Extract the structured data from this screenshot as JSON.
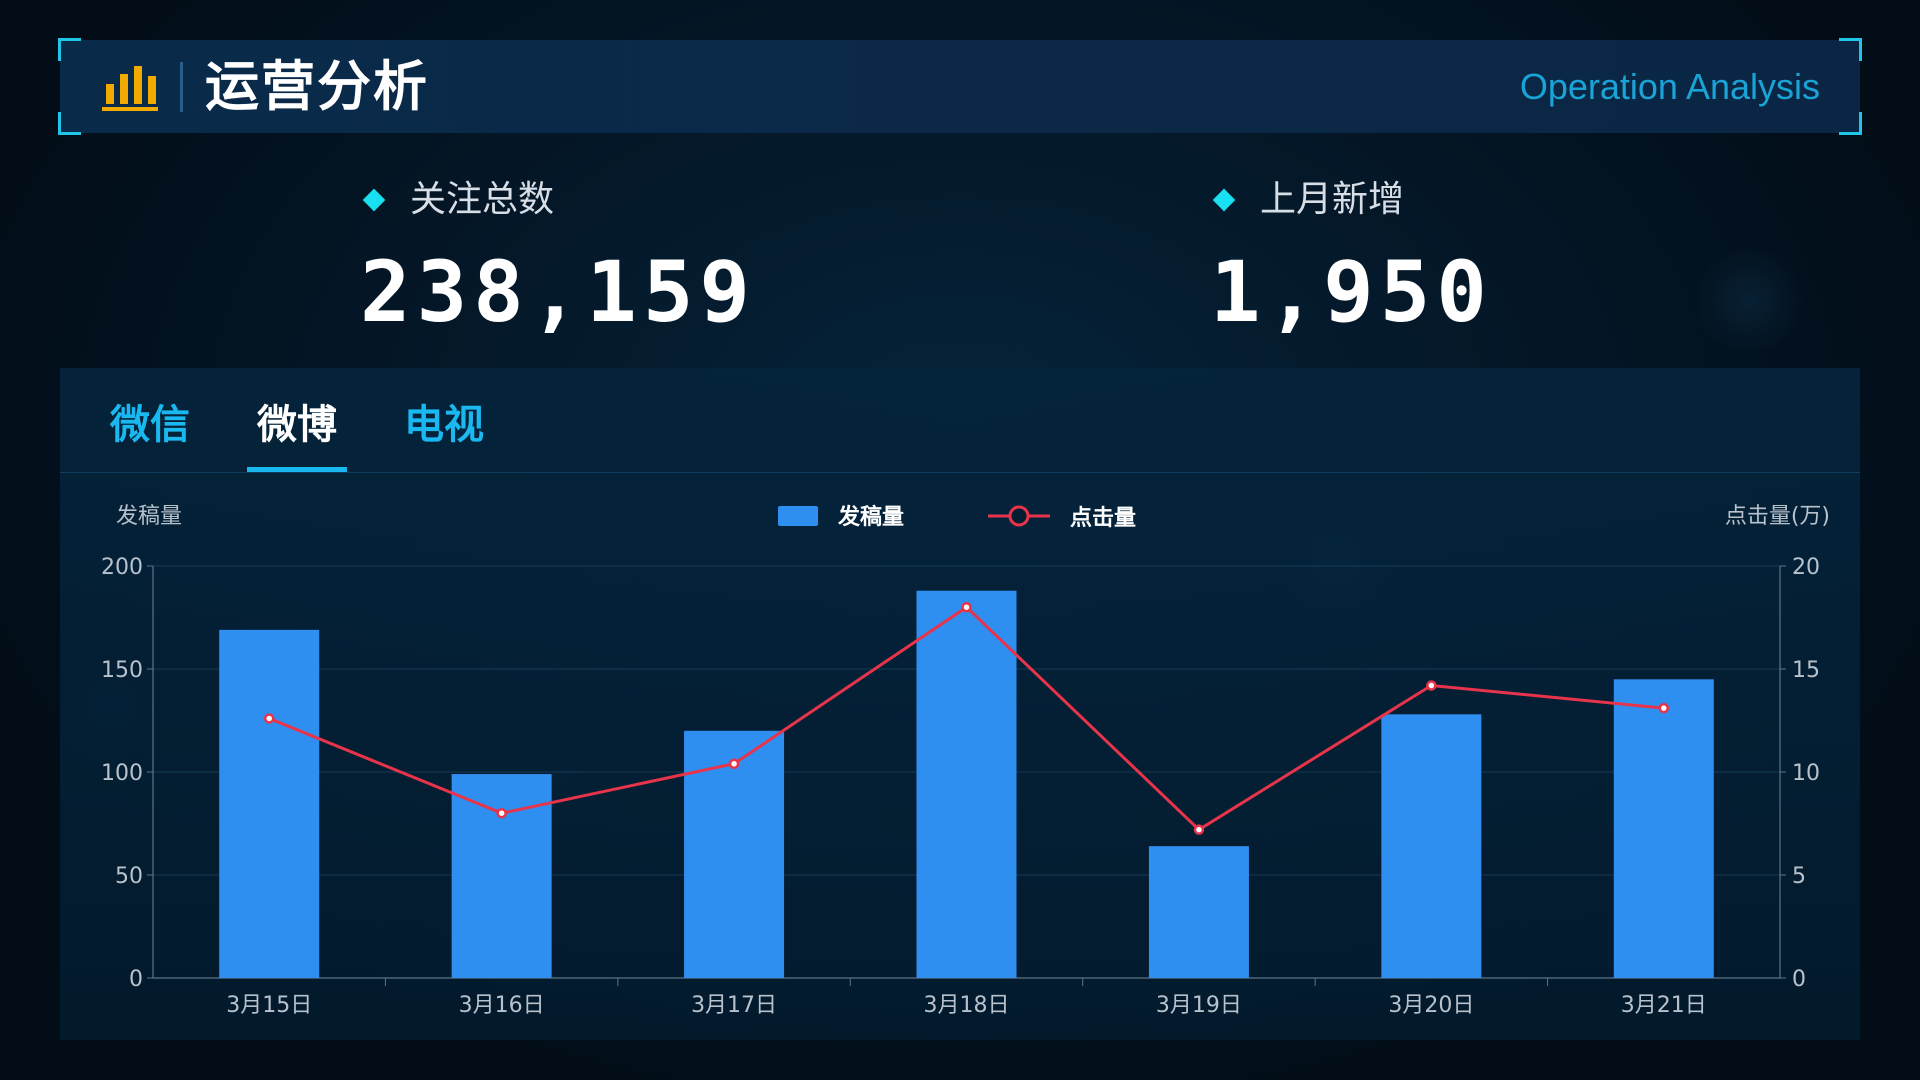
{
  "header": {
    "title": "运营分析",
    "subtitle": "Operation Analysis",
    "icon": "bar-chart-icon",
    "accent_color": "#f2a900"
  },
  "stats": [
    {
      "label": "关注总数",
      "value": "238,159"
    },
    {
      "label": "上月新增",
      "value": "1,950"
    }
  ],
  "tabs": [
    {
      "label": "微信",
      "active": false
    },
    {
      "label": "微博",
      "active": true
    },
    {
      "label": "电视",
      "active": false
    }
  ],
  "chart_data": {
    "type": "bar",
    "categories": [
      "3月15日",
      "3月16日",
      "3月17日",
      "3月18日",
      "3月19日",
      "3月20日",
      "3月21日"
    ],
    "series": [
      {
        "name": "发稿量",
        "type": "bar",
        "axis": "left",
        "color": "#2f8ff0",
        "values": [
          169,
          99,
          120,
          188,
          64,
          128,
          145
        ]
      },
      {
        "name": "点击量",
        "type": "line",
        "axis": "right",
        "color": "#e8344a",
        "values": [
          12.6,
          8.0,
          10.4,
          18.0,
          7.2,
          14.2,
          13.1
        ]
      }
    ],
    "ylabel_left": "发稿量",
    "ylabel_right": "点击量(万)",
    "ylim_left": [
      0,
      200
    ],
    "ylim_right": [
      0,
      20
    ],
    "yticks_left": [
      "0",
      "50",
      "100",
      "150",
      "200"
    ],
    "yticks_right": [
      "0",
      "5",
      "10",
      "15",
      "20"
    ],
    "legend_position": "top-center",
    "grid": true
  }
}
